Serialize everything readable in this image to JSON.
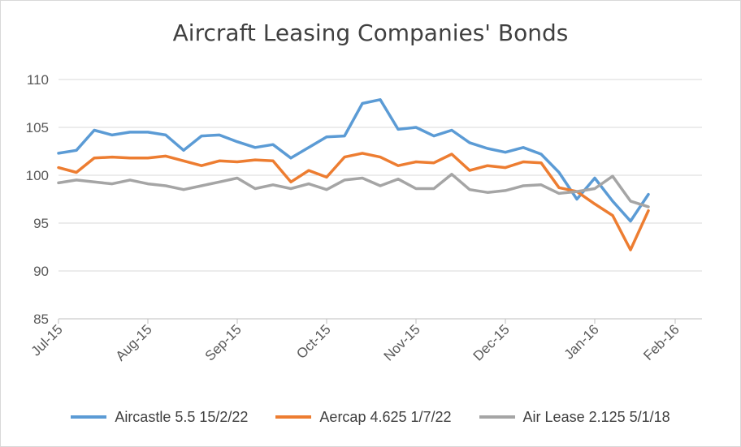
{
  "chart_data": {
    "type": "line",
    "title": "Aircraft Leasing Companies' Bonds",
    "xlabel": "",
    "ylabel": "",
    "ylim": [
      85,
      110
    ],
    "yticks": [
      85,
      90,
      95,
      100,
      105,
      110
    ],
    "x_count": 37,
    "xticks": [
      {
        "label": "Jul-15",
        "index": 0
      },
      {
        "label": "Aug-15",
        "index": 5
      },
      {
        "label": "Sep-15",
        "index": 10
      },
      {
        "label": "Oct-15",
        "index": 15
      },
      {
        "label": "Nov-15",
        "index": 20
      },
      {
        "label": "Dec-15",
        "index": 25
      },
      {
        "label": "Jan-16",
        "index": 30
      },
      {
        "label": "Feb-16",
        "index": 34.5
      }
    ],
    "grid": true,
    "legend": "bottom",
    "series": [
      {
        "name": "Aircastle 5.5 15/2/22",
        "color": "#5b9bd5",
        "values": [
          102.3,
          102.6,
          104.7,
          104.2,
          104.5,
          104.5,
          104.2,
          102.6,
          104.1,
          104.2,
          103.5,
          102.9,
          103.2,
          101.8,
          102.9,
          104.0,
          104.1,
          107.5,
          107.9,
          104.8,
          105.0,
          104.1,
          104.7,
          103.4,
          102.8,
          102.4,
          102.9,
          102.2,
          100.3,
          97.5,
          99.7,
          97.3,
          95.2,
          98.0,
          null,
          null,
          null
        ]
      },
      {
        "name": "Aercap 4.625 1/7/22",
        "color": "#ed7d31",
        "values": [
          100.8,
          100.3,
          101.8,
          101.9,
          101.8,
          101.8,
          102.0,
          101.5,
          101.0,
          101.5,
          101.4,
          101.6,
          101.5,
          99.3,
          100.5,
          99.8,
          101.9,
          102.3,
          101.9,
          101.0,
          101.4,
          101.3,
          102.2,
          100.5,
          101.0,
          100.8,
          101.4,
          101.3,
          98.7,
          98.3,
          97.0,
          95.8,
          92.2,
          96.3,
          null,
          null,
          null
        ]
      },
      {
        "name": "Air Lease 2.125 5/1/18",
        "color": "#a5a5a5",
        "values": [
          99.2,
          99.5,
          99.3,
          99.1,
          99.5,
          99.1,
          98.9,
          98.5,
          98.9,
          99.3,
          99.7,
          98.6,
          99.0,
          98.6,
          99.1,
          98.5,
          99.5,
          99.7,
          98.9,
          99.6,
          98.6,
          98.6,
          100.1,
          98.5,
          98.2,
          98.4,
          98.9,
          99.0,
          98.1,
          98.3,
          98.6,
          99.9,
          97.3,
          96.7,
          null,
          null,
          null
        ]
      }
    ]
  }
}
